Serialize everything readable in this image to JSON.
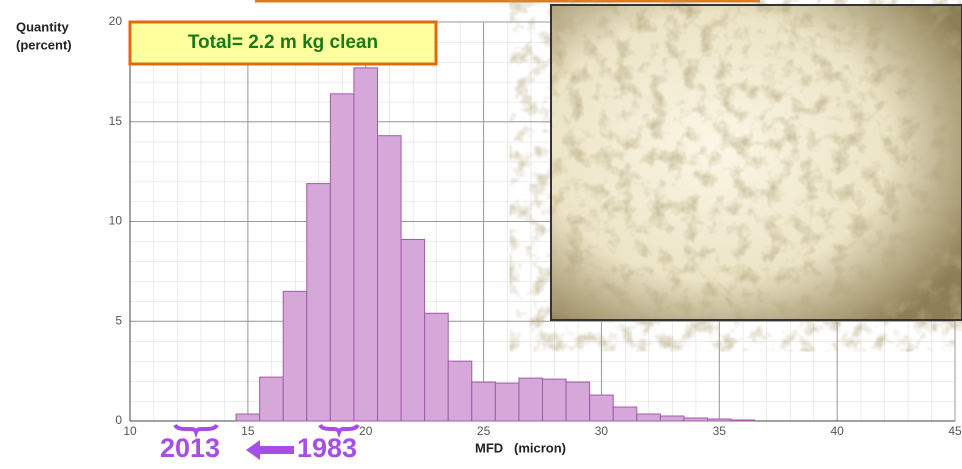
{
  "chart_data": {
    "type": "histogram",
    "annotation": "Total= 2.2 m kg clean",
    "ylabel": [
      "Quantity",
      "(percent)"
    ],
    "xlabel": "MFD   (micron)",
    "bins": [
      14.5,
      15.5,
      16.5,
      17.5,
      18.5,
      19.5,
      20.5,
      21.5,
      22.5,
      23.5,
      24.5,
      25.5,
      26.5,
      27.5,
      28.5,
      29.5,
      30.5,
      31.5,
      32.5,
      33.5,
      34.5,
      35.5,
      36.5
    ],
    "values": [
      0.35,
      2.2,
      6.5,
      11.9,
      16.4,
      17.7,
      14.3,
      9.1,
      5.4,
      3.0,
      1.95,
      1.9,
      2.15,
      2.1,
      1.95,
      1.3,
      0.7,
      0.35,
      0.25,
      0.15,
      0.1,
      0.05
    ],
    "color": "#d6a8da",
    "xlim": [
      10,
      45
    ],
    "ylim": [
      0,
      20
    ],
    "xticks": [
      10,
      15,
      20,
      25,
      30,
      35,
      40,
      45
    ],
    "yticks": [
      0,
      5,
      10,
      15,
      20
    ],
    "grid": true,
    "year_labels": [
      "2013",
      "1983"
    ]
  }
}
